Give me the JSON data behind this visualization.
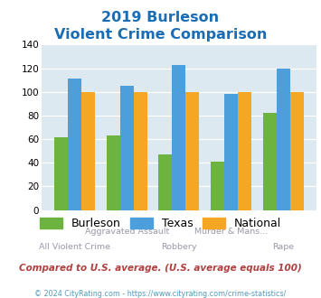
{
  "title_line1": "2019 Burleson",
  "title_line2": "Violent Crime Comparison",
  "cat_top_labels": [
    "",
    "Aggravated Assault",
    "",
    "Murder & Mans...",
    ""
  ],
  "cat_bot_labels": [
    "All Violent Crime",
    "",
    "Robbery",
    "",
    "Rape"
  ],
  "burleson": [
    62,
    63,
    47,
    41,
    82
  ],
  "texas": [
    111,
    105,
    123,
    98,
    120
  ],
  "national": [
    100,
    100,
    100,
    100,
    100
  ],
  "burleson_color": "#6db33f",
  "texas_color": "#4d9fdb",
  "national_color": "#f5a623",
  "ylim": [
    0,
    140
  ],
  "yticks": [
    0,
    20,
    40,
    60,
    80,
    100,
    120,
    140
  ],
  "plot_bg": "#dce9f0",
  "title_color": "#1a6db5",
  "footer_text": "Compared to U.S. average. (U.S. average equals 100)",
  "footer_color": "#b04040",
  "copyright_text": "© 2024 CityRating.com - https://www.cityrating.com/crime-statistics/",
  "copyright_color": "#5599bb",
  "legend_labels": [
    "Burleson",
    "Texas",
    "National"
  ]
}
